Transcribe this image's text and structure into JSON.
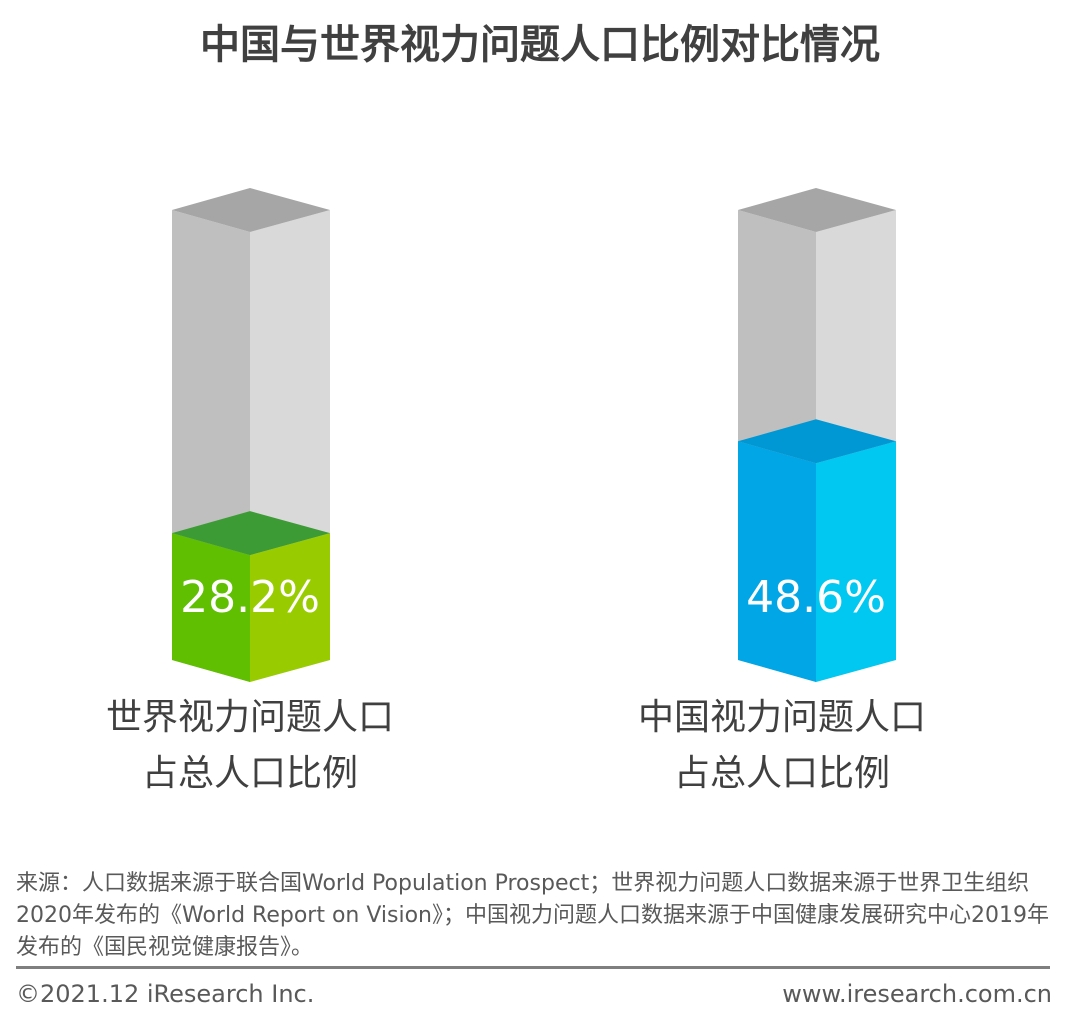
{
  "chart_data": {
    "type": "bar",
    "title": "中国与世界视力问题人口比例对比情况",
    "categories": [
      "世界视力问题人口占总人口比例",
      "中国视力问题人口占总人口比例"
    ],
    "category_lines": [
      [
        "世界视力问题人口",
        "占总人口比例"
      ],
      [
        "中国视力问题人口",
        "占总人口比例"
      ]
    ],
    "values": [
      28.2,
      48.6
    ],
    "value_labels": [
      "28.2%",
      "48.6%"
    ],
    "ylim": [
      0,
      100
    ],
    "colors": [
      {
        "left": "#5fbf00",
        "right": "#99cc00",
        "top": "#3d9b35"
      },
      {
        "left": "#00a6e6",
        "right": "#00c8f0",
        "top": "#0098d4"
      }
    ]
  },
  "source": "来源：人口数据来源于联合国World Population Prospect；世界视力问题人口数据来源于世界卫生组织2020年发布的《World Report on Vision》；中国视力问题人口数据来源于中国健康发展研究中心2019年发布的《国民视觉健康报告》。",
  "footer": {
    "copyright": "©2021.12 iResearch Inc.",
    "website": "www.iresearch.com.cn"
  }
}
